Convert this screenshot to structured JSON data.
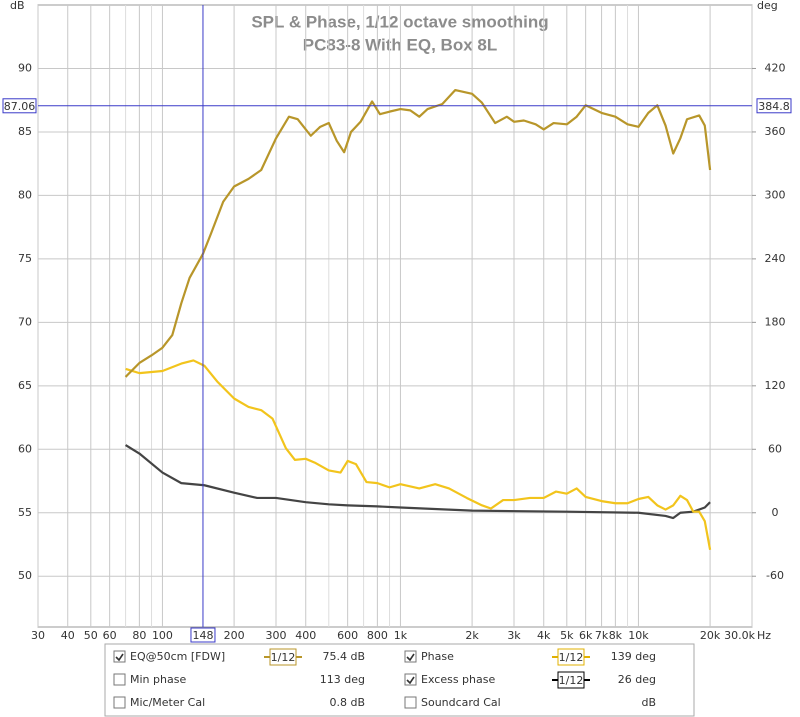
{
  "chart_data": {
    "type": "line",
    "title": "SPL & Phase, 1/12 octave smoothing",
    "subtitle": "PC83-8 With EQ, Box 8L",
    "ylabel": "dB",
    "y2label": "deg",
    "xunit": "Hz",
    "log_x": true,
    "grid": true,
    "xlim": [
      30,
      30000
    ],
    "xticks": [
      30,
      40,
      50,
      60,
      80,
      100,
      200,
      300,
      400,
      600,
      800,
      {
        "value": 1000,
        "label": "1k"
      },
      {
        "value": 2000,
        "label": "2k"
      },
      {
        "value": 3000,
        "label": "3k"
      },
      {
        "value": 4000,
        "label": "4k"
      },
      {
        "value": 5000,
        "label": "5k"
      },
      {
        "value": 6000,
        "label": "6k"
      },
      {
        "value": 7000,
        "label": "7k"
      },
      {
        "value": 8000,
        "label": "8k"
      },
      {
        "value": 10000,
        "label": "10k"
      },
      {
        "value": 20000,
        "label": "20k"
      },
      {
        "value": 30000,
        "label": "30.0k"
      }
    ],
    "xgrid_minor": [
      70,
      90,
      500,
      700,
      900,
      9000
    ],
    "ylim": [
      46,
      95
    ],
    "yticks": [
      50,
      55,
      60,
      65,
      70,
      75,
      80,
      85,
      90
    ],
    "y2lim": [
      -108,
      480
    ],
    "y2ticks": [
      -60,
      0,
      60,
      120,
      180,
      240,
      300,
      360,
      420
    ],
    "cursor": {
      "x": 148,
      "y": 87.06,
      "y2": 384.8,
      "color": "#3a3ac8"
    },
    "series": [
      {
        "name": "EQ@50cm [FDW]",
        "color": "#b8962a",
        "x": [
          70,
          80,
          90,
          100,
          110,
          120,
          130,
          148,
          160,
          180,
          200,
          230,
          260,
          300,
          340,
          370,
          420,
          460,
          500,
          540,
          580,
          620,
          680,
          760,
          820,
          900,
          1000,
          1100,
          1200,
          1300,
          1500,
          1700,
          2000,
          2200,
          2500,
          2800,
          3000,
          3300,
          3700,
          4000,
          4400,
          5000,
          5500,
          6000,
          7000,
          8000,
          9000,
          10000,
          11000,
          12000,
          13000,
          14000,
          15000,
          16000,
          18000,
          19000,
          20000
        ],
        "values": [
          65.7,
          66.8,
          67.4,
          68.0,
          69.0,
          71.5,
          73.5,
          75.4,
          77.0,
          79.5,
          80.7,
          81.3,
          82.0,
          84.5,
          86.2,
          86.0,
          84.7,
          85.4,
          85.7,
          84.3,
          83.4,
          85.0,
          85.8,
          87.4,
          86.4,
          86.6,
          86.8,
          86.7,
          86.2,
          86.8,
          87.2,
          88.3,
          88.0,
          87.3,
          85.7,
          86.2,
          85.8,
          85.9,
          85.6,
          85.2,
          85.7,
          85.6,
          86.2,
          87.1,
          86.5,
          86.2,
          85.6,
          85.4,
          86.5,
          87.1,
          85.5,
          83.3,
          84.5,
          86.0,
          86.3,
          85.5,
          82.0
        ]
      },
      {
        "name": "Phase",
        "color": "#f2c41c",
        "axis": "y2",
        "x": [
          70,
          80,
          100,
          120,
          135,
          150,
          170,
          200,
          230,
          260,
          290,
          330,
          360,
          400,
          440,
          500,
          560,
          600,
          650,
          720,
          800,
          900,
          1000,
          1200,
          1400,
          1600,
          1900,
          2200,
          2400,
          2700,
          3000,
          3500,
          4000,
          4500,
          5000,
          5500,
          6000,
          7000,
          8000,
          9000,
          10000,
          11000,
          12000,
          13000,
          14000,
          15000,
          16000,
          17000,
          18000,
          19000,
          20000
        ],
        "values": [
          136,
          132,
          134,
          141,
          144,
          139,
          124,
          108,
          100,
          97,
          89,
          61,
          50,
          51,
          47,
          40,
          38,
          49,
          46,
          29,
          28,
          24,
          27,
          23,
          27,
          23,
          14,
          7,
          4,
          12,
          12,
          14,
          14,
          20,
          18,
          23,
          15,
          11,
          9,
          9,
          13,
          15,
          7,
          3,
          7,
          16,
          12,
          1,
          1,
          -8,
          -35
        ]
      },
      {
        "name": "Excess phase",
        "color": "#444444",
        "axis": "y2",
        "x": [
          70,
          80,
          100,
          120,
          150,
          200,
          250,
          300,
          400,
          500,
          600,
          800,
          1000,
          2000,
          5000,
          10000,
          13000,
          14000,
          15000,
          17000,
          19000,
          20000
        ],
        "values": [
          64,
          56,
          38,
          28,
          26,
          19,
          14,
          14,
          10,
          8,
          7,
          6,
          5,
          2,
          1,
          0,
          -3,
          -5,
          0,
          1,
          5,
          10
        ]
      }
    ]
  },
  "readouts": [
    [
      {
        "label": "EQ@50cm [FDW]",
        "checked": true,
        "smoothing": "1/12",
        "value": "75.4 dB",
        "color": "#b8962a"
      },
      {
        "label": "Phase",
        "checked": true,
        "smoothing": "1/12",
        "value": "139 deg",
        "color": "#e0b000"
      }
    ],
    [
      {
        "label": "Min phase",
        "checked": false,
        "value": "113 deg",
        "color": "#666666"
      },
      {
        "label": "Excess phase",
        "checked": true,
        "smoothing": "1/12",
        "value": "26 deg",
        "color": "#000000"
      }
    ],
    [
      {
        "label": "Mic/Meter Cal",
        "checked": false,
        "value": "0.8 dB",
        "color": "#000000"
      },
      {
        "label": "Soundcard Cal",
        "checked": false,
        "value": "dB",
        "color": "#aaaaaa"
      }
    ]
  ]
}
